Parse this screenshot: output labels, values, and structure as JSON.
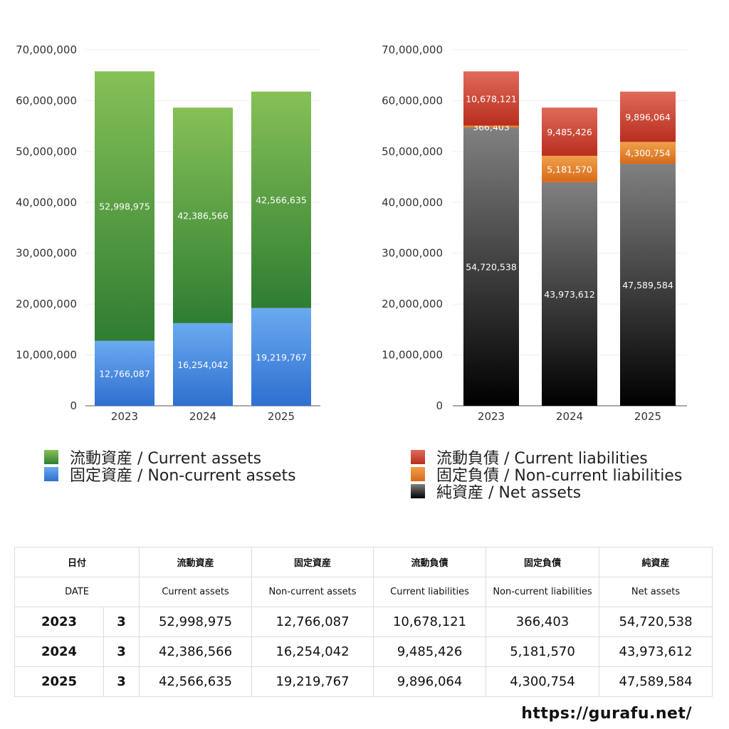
{
  "chart_data": [
    {
      "type": "bar",
      "stacked": true,
      "categories": [
        "2023",
        "2024",
        "2025"
      ],
      "ylim": [
        0,
        70000000
      ],
      "yticks": [
        0,
        10000000,
        20000000,
        30000000,
        40000000,
        50000000,
        60000000,
        70000000
      ],
      "ytick_labels": [
        "0",
        "10,000,000",
        "20,000,000",
        "30,000,000",
        "40,000,000",
        "50,000,000",
        "60,000,000",
        "70,000,000"
      ],
      "series": [
        {
          "name": "固定資産 / Non-current assets",
          "values": [
            12766087,
            16254042,
            19219767
          ],
          "labels": [
            "12,766,087",
            "16,254,042",
            "19,219,767"
          ],
          "color_top": "#6aaaf0",
          "color_bottom": "#2f6fd0"
        },
        {
          "name": "流動資産 / Current assets",
          "values": [
            52998975,
            42386566,
            42566635
          ],
          "labels": [
            "52,998,975",
            "42,386,566",
            "42,566,635"
          ],
          "color_top": "#86c157",
          "color_bottom": "#2f7d32"
        }
      ],
      "legend_order": [
        1,
        0
      ],
      "legend_position": "bottom"
    },
    {
      "type": "bar",
      "stacked": true,
      "categories": [
        "2023",
        "2024",
        "2025"
      ],
      "ylim": [
        0,
        70000000
      ],
      "yticks": [
        0,
        10000000,
        20000000,
        30000000,
        40000000,
        50000000,
        60000000,
        70000000
      ],
      "ytick_labels": [
        "0",
        "10,000,000",
        "20,000,000",
        "30,000,000",
        "40,000,000",
        "50,000,000",
        "60,000,000",
        "70,000,000"
      ],
      "series": [
        {
          "name": "純資産 / Net assets",
          "values": [
            54720538,
            43973612,
            47589584
          ],
          "labels": [
            "54,720,538",
            "43,973,612",
            "47,589,584"
          ],
          "color_top": "#808080",
          "color_bottom": "#000000"
        },
        {
          "name": "固定負債 / Non-current liabilities",
          "values": [
            366403,
            5181570,
            4300754
          ],
          "labels": [
            "366,403",
            "5,181,570",
            "4,300,754"
          ],
          "color_top": "#f0a04a",
          "color_bottom": "#d86a1a"
        },
        {
          "name": "流動負債 / Current liabilities",
          "values": [
            10678121,
            9485426,
            9896064
          ],
          "labels": [
            "10,678,121",
            "9,485,426",
            "9,896,064"
          ],
          "color_top": "#e06a5a",
          "color_bottom": "#b82e1e"
        }
      ],
      "legend_order": [
        2,
        1,
        0
      ],
      "legend_position": "bottom"
    }
  ],
  "table": {
    "headers_ja": [
      "日付",
      "流動資産",
      "固定資産",
      "流動負債",
      "固定負債",
      "純資産"
    ],
    "headers_en": [
      "DATE",
      "Current assets",
      "Non-current assets",
      "Current liabilities",
      "Non-current liabilities",
      "Net assets"
    ],
    "rows": [
      {
        "year": "2023",
        "month": "3",
        "values": [
          "52,998,975",
          "12,766,087",
          "10,678,121",
          "366,403",
          "54,720,538"
        ]
      },
      {
        "year": "2024",
        "month": "3",
        "values": [
          "42,386,566",
          "16,254,042",
          "9,485,426",
          "5,181,570",
          "43,973,612"
        ]
      },
      {
        "year": "2025",
        "month": "3",
        "values": [
          "42,566,635",
          "19,219,767",
          "9,896,064",
          "4,300,754",
          "47,589,584"
        ]
      }
    ]
  },
  "site_url": "https://gurafu.net/"
}
